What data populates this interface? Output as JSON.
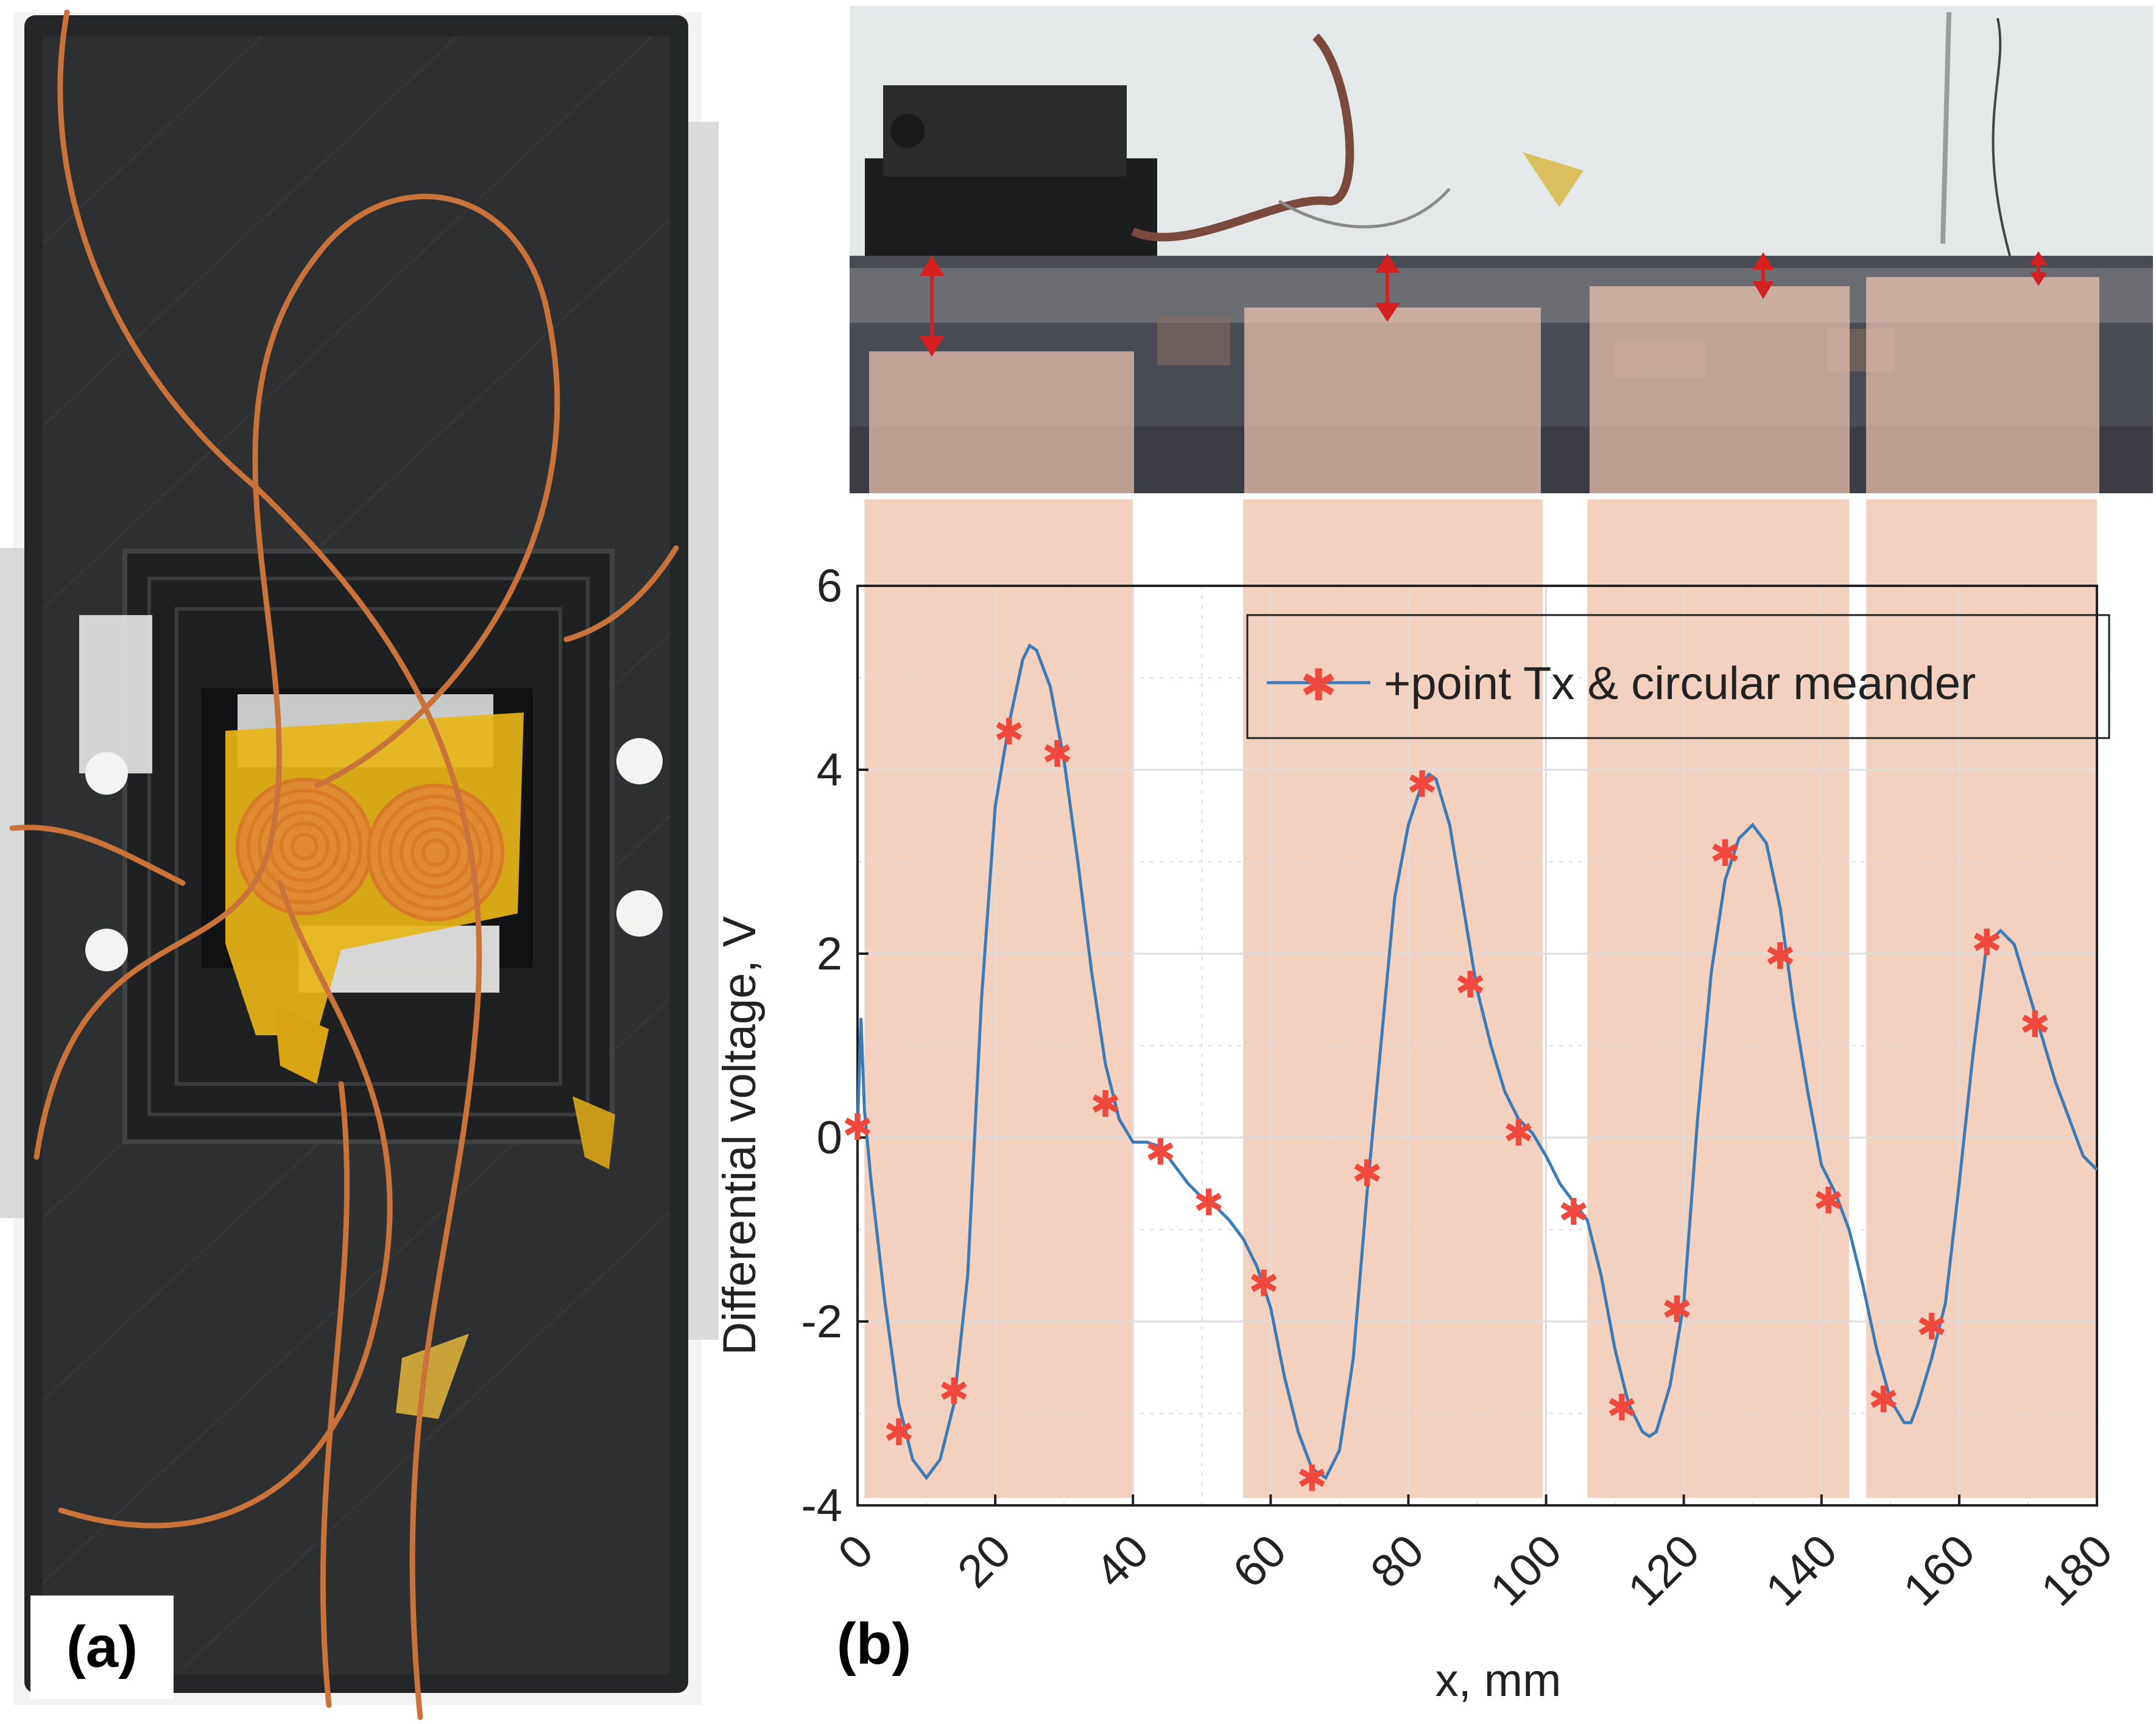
{
  "panels": {
    "a_label": "(a)",
    "b_label": "(b)"
  },
  "colors": {
    "line": "#3b7cb8",
    "marker": "#f0483c",
    "shade": "#f2c8b3",
    "frame": "#222222",
    "grid": "#dddddd"
  },
  "chart_data": {
    "type": "line",
    "title": "",
    "xlabel": "x, mm",
    "ylabel": "Differential voltage, V",
    "xlim": [
      0,
      180
    ],
    "ylim": [
      -4,
      6
    ],
    "xticks": [
      "0",
      "20",
      "40",
      "60",
      "80",
      "100",
      "120",
      "140",
      "160",
      "180"
    ],
    "yticks": [
      "-4",
      "-2",
      "0",
      "2",
      "4",
      "6"
    ],
    "grid": true,
    "legend": {
      "position": "top-right",
      "entries": [
        "+point Tx & circular meander"
      ]
    },
    "shaded_regions": [
      [
        1,
        40
      ],
      [
        56,
        99.5
      ],
      [
        106,
        144
      ],
      [
        146.5,
        180
      ]
    ],
    "series": [
      {
        "name": "+point Tx & circular meander",
        "line": [
          [
            0,
            0.1
          ],
          [
            0.5,
            1.3
          ],
          [
            1,
            0.3
          ],
          [
            2,
            -0.5
          ],
          [
            4,
            -1.8
          ],
          [
            6,
            -2.9
          ],
          [
            8,
            -3.5
          ],
          [
            10,
            -3.7
          ],
          [
            12,
            -3.5
          ],
          [
            14,
            -2.9
          ],
          [
            16,
            -1.5
          ],
          [
            18,
            1.5
          ],
          [
            20,
            3.6
          ],
          [
            22,
            4.5
          ],
          [
            24,
            5.2
          ],
          [
            25,
            5.35
          ],
          [
            26,
            5.3
          ],
          [
            28,
            4.9
          ],
          [
            30,
            4.1
          ],
          [
            32,
            3.0
          ],
          [
            34,
            1.8
          ],
          [
            36,
            0.8
          ],
          [
            38,
            0.2
          ],
          [
            40,
            -0.05
          ],
          [
            42,
            -0.05
          ],
          [
            44,
            -0.1
          ],
          [
            46,
            -0.3
          ],
          [
            48,
            -0.5
          ],
          [
            50,
            -0.65
          ],
          [
            52,
            -0.75
          ],
          [
            54,
            -0.9
          ],
          [
            56,
            -1.1
          ],
          [
            58,
            -1.4
          ],
          [
            60,
            -1.85
          ],
          [
            62,
            -2.6
          ],
          [
            64,
            -3.2
          ],
          [
            66,
            -3.6
          ],
          [
            68,
            -3.7
          ],
          [
            70,
            -3.4
          ],
          [
            72,
            -2.4
          ],
          [
            74,
            -0.6
          ],
          [
            76,
            1.0
          ],
          [
            78,
            2.6
          ],
          [
            80,
            3.4
          ],
          [
            82,
            3.85
          ],
          [
            83,
            3.95
          ],
          [
            84,
            3.9
          ],
          [
            86,
            3.4
          ],
          [
            88,
            2.5
          ],
          [
            90,
            1.6
          ],
          [
            92,
            1.0
          ],
          [
            94,
            0.5
          ],
          [
            96,
            0.2
          ],
          [
            98,
            0.05
          ],
          [
            100,
            -0.2
          ],
          [
            102,
            -0.5
          ],
          [
            104,
            -0.7
          ],
          [
            106,
            -0.9
          ],
          [
            108,
            -1.5
          ],
          [
            110,
            -2.3
          ],
          [
            112,
            -2.9
          ],
          [
            114,
            -3.2
          ],
          [
            115,
            -3.25
          ],
          [
            116,
            -3.2
          ],
          [
            118,
            -2.7
          ],
          [
            120,
            -1.8
          ],
          [
            122,
            0.2
          ],
          [
            124,
            1.8
          ],
          [
            126,
            2.8
          ],
          [
            128,
            3.25
          ],
          [
            130,
            3.4
          ],
          [
            132,
            3.2
          ],
          [
            134,
            2.5
          ],
          [
            136,
            1.4
          ],
          [
            138,
            0.5
          ],
          [
            140,
            -0.3
          ],
          [
            142,
            -0.6
          ],
          [
            144,
            -1.0
          ],
          [
            146,
            -1.6
          ],
          [
            148,
            -2.3
          ],
          [
            150,
            -2.85
          ],
          [
            152,
            -3.1
          ],
          [
            153,
            -3.1
          ],
          [
            154,
            -2.9
          ],
          [
            156,
            -2.4
          ],
          [
            158,
            -1.8
          ],
          [
            160,
            -0.5
          ],
          [
            162,
            0.9
          ],
          [
            164,
            2.1
          ],
          [
            166,
            2.25
          ],
          [
            168,
            2.1
          ],
          [
            170,
            1.6
          ],
          [
            172,
            1.1
          ],
          [
            174,
            0.6
          ],
          [
            176,
            0.2
          ],
          [
            178,
            -0.2
          ],
          [
            180,
            -0.35
          ]
        ],
        "markers": [
          [
            0,
            0.12
          ],
          [
            6,
            -3.2
          ],
          [
            14,
            -2.75
          ],
          [
            22,
            4.42
          ],
          [
            29,
            4.18
          ],
          [
            36,
            0.37
          ],
          [
            44,
            -0.15
          ],
          [
            51,
            -0.7
          ],
          [
            59,
            -1.58
          ],
          [
            66,
            -3.7
          ],
          [
            74,
            -0.38
          ],
          [
            82,
            3.85
          ],
          [
            89,
            1.67
          ],
          [
            96,
            0.06
          ],
          [
            104,
            -0.8
          ],
          [
            111,
            -2.93
          ],
          [
            119,
            -1.86
          ],
          [
            126,
            3.1
          ],
          [
            134,
            1.98
          ],
          [
            141,
            -0.68
          ],
          [
            149,
            -2.84
          ],
          [
            156,
            -2.05
          ],
          [
            164,
            2.13
          ],
          [
            171,
            1.24
          ]
        ]
      }
    ]
  }
}
